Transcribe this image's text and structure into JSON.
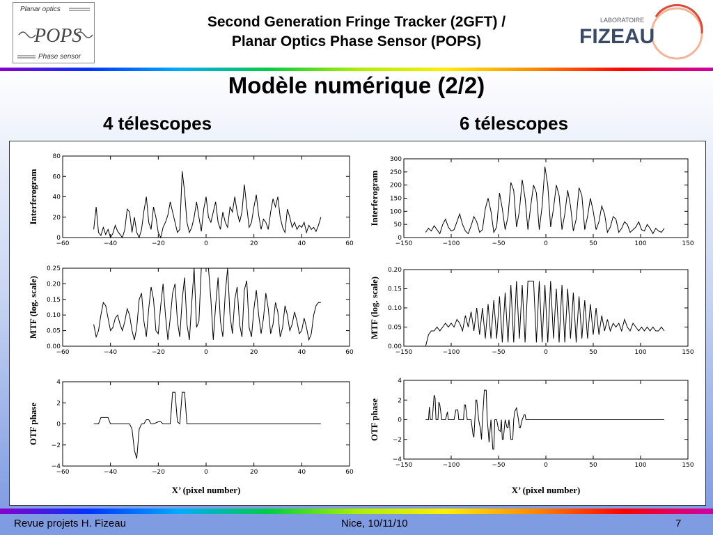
{
  "header": {
    "title_line1": "Second Generation Fringe Tracker (2GFT) /",
    "title_line2": "Planar Optics Phase Sensor (POPS)",
    "logo_left": {
      "top": "Planar optics",
      "mid": "POPS",
      "bottom": "Phase sensor"
    },
    "logo_right": {
      "small": "LABORATOIRE",
      "big": "FIZEAU"
    }
  },
  "slide_title": "Modèle numérique (2/2)",
  "columns": {
    "left": "4 télescopes",
    "right": "6 télescopes"
  },
  "footer": {
    "left": "Revue projets H. Fizeau",
    "center": "Nice, 10/11/10",
    "right": "7"
  },
  "colors": {
    "line": "#000000",
    "panel": "#ffffff"
  },
  "chart_data": [
    {
      "type": "line",
      "name": "interf-4",
      "ylabel": "Interferogram",
      "xlim": [
        -60,
        60
      ],
      "ylim": [
        0,
        80
      ],
      "xticks": [
        -60,
        -40,
        -20,
        0,
        20,
        40,
        60
      ],
      "yticks": [
        0,
        20,
        40,
        60,
        80
      ],
      "x": [
        -47,
        -46,
        -45,
        -44,
        -43,
        -42,
        -41,
        -40,
        -39,
        -38,
        -37,
        -36,
        -35,
        -34,
        -33,
        -32,
        -31,
        -30,
        -29,
        -28,
        -27,
        -26,
        -25,
        -24,
        -23,
        -22,
        -21,
        -20,
        -19,
        -18,
        -17,
        -16,
        -15,
        -14,
        -13,
        -12,
        -11,
        -10,
        -9,
        -8,
        -7,
        -6,
        -5,
        -4,
        -3,
        -2,
        -1,
        0,
        1,
        2,
        3,
        4,
        5,
        6,
        7,
        8,
        9,
        10,
        11,
        12,
        13,
        14,
        15,
        16,
        17,
        18,
        19,
        20,
        21,
        22,
        23,
        24,
        25,
        26,
        27,
        28,
        29,
        30,
        31,
        32,
        33,
        34,
        35,
        36,
        37,
        38,
        39,
        40,
        41,
        42,
        43,
        44,
        45,
        46,
        47,
        48
      ],
      "y": [
        8,
        30,
        5,
        2,
        10,
        3,
        8,
        0,
        4,
        12,
        6,
        3,
        0,
        8,
        28,
        25,
        5,
        20,
        5,
        0,
        8,
        26,
        40,
        15,
        8,
        30,
        20,
        5,
        0,
        10,
        15,
        22,
        35,
        25,
        15,
        5,
        8,
        65,
        45,
        15,
        5,
        10,
        20,
        35,
        20,
        6,
        28,
        40,
        20,
        15,
        25,
        35,
        15,
        8,
        25,
        15,
        10,
        30,
        25,
        40,
        25,
        15,
        25,
        52,
        30,
        10,
        15,
        30,
        42,
        22,
        8,
        18,
        15,
        8,
        25,
        38,
        30,
        40,
        20,
        10,
        5,
        28,
        20,
        10,
        15,
        8,
        12,
        10,
        15,
        5,
        12,
        8,
        10,
        6,
        12,
        20
      ]
    },
    {
      "type": "line",
      "name": "mtf-4",
      "ylabel": "MTF (log. scale)",
      "xlim": [
        -60,
        60
      ],
      "ylim": [
        0,
        0.25
      ],
      "xticks": [
        -60,
        -40,
        -20,
        0,
        20,
        40,
        60
      ],
      "yticks": [
        0.0,
        0.05,
        0.1,
        0.15,
        0.2,
        0.25
      ],
      "x": [
        -47,
        -46,
        -45,
        -44,
        -43,
        -42,
        -41,
        -40,
        -39,
        -38,
        -37,
        -36,
        -35,
        -34,
        -33,
        -32,
        -31,
        -30,
        -29,
        -28,
        -27,
        -26,
        -25,
        -24,
        -23,
        -22,
        -21,
        -20,
        -19,
        -18,
        -17,
        -16,
        -15,
        -14,
        -13,
        -12,
        -11,
        -10,
        -9,
        -8,
        -7,
        -6,
        -5,
        -4,
        -3,
        -2,
        -1,
        0,
        1,
        2,
        3,
        4,
        5,
        6,
        7,
        8,
        9,
        10,
        11,
        12,
        13,
        14,
        15,
        16,
        17,
        18,
        19,
        20,
        21,
        22,
        23,
        24,
        25,
        26,
        27,
        28,
        29,
        30,
        31,
        32,
        33,
        34,
        35,
        36,
        37,
        38,
        39,
        40,
        41,
        42,
        43,
        44,
        45,
        46,
        47,
        48
      ],
      "y": [
        0.07,
        0.03,
        0.05,
        0.1,
        0.14,
        0.13,
        0.09,
        0.05,
        0.06,
        0.09,
        0.1,
        0.07,
        0.05,
        0.08,
        0.12,
        0.1,
        0.05,
        0.02,
        0.06,
        0.15,
        0.17,
        0.08,
        0.03,
        0.12,
        0.19,
        0.15,
        0.05,
        0.04,
        0.13,
        0.2,
        0.1,
        0.02,
        0.09,
        0.17,
        0.2,
        0.08,
        0.03,
        0.15,
        0.22,
        0.07,
        0.02,
        0.14,
        0.25,
        0.06,
        0.08,
        0.25,
        0.25,
        0.25,
        0.25,
        0.15,
        0.02,
        0.13,
        0.22,
        0.08,
        0.03,
        0.17,
        0.25,
        0.1,
        0.04,
        0.15,
        0.19,
        0.07,
        0.03,
        0.18,
        0.21,
        0.06,
        0.03,
        0.12,
        0.18,
        0.1,
        0.04,
        0.09,
        0.17,
        0.12,
        0.04,
        0.07,
        0.14,
        0.11,
        0.03,
        0.06,
        0.13,
        0.1,
        0.05,
        0.07,
        0.11,
        0.08,
        0.04,
        0.05,
        0.09,
        0.06,
        0.02,
        0.04,
        0.1,
        0.13,
        0.14,
        0.14
      ]
    },
    {
      "type": "line",
      "name": "phase-4",
      "ylabel": "OTF phase",
      "xlabel": "X’ (pixel number)",
      "xlim": [
        -60,
        60
      ],
      "ylim": [
        -4,
        4
      ],
      "xticks": [
        -60,
        -40,
        -20,
        0,
        20,
        40,
        60
      ],
      "yticks": [
        -4,
        -2,
        0,
        2,
        4
      ],
      "x": [
        -47,
        -45,
        -44,
        -43,
        -42,
        -41,
        -40,
        -36,
        -32,
        -31,
        -30,
        -29,
        -28,
        -27,
        -26,
        -25,
        -24,
        -23,
        -22,
        -20,
        -19,
        -18,
        -17,
        -16,
        -15,
        -14,
        -13,
        -12,
        -11,
        -10,
        -9,
        -8,
        -6,
        -3,
        0,
        10,
        20,
        30,
        40,
        48
      ],
      "y": [
        0,
        0,
        0.6,
        0.6,
        0.6,
        0.6,
        0,
        0,
        0,
        -0.5,
        -2.5,
        -3.3,
        -0.5,
        0,
        0,
        0.4,
        0.4,
        0,
        0,
        0.2,
        0.2,
        0,
        0,
        0,
        0,
        3.0,
        3.0,
        0.2,
        0,
        3.0,
        3.0,
        0,
        0,
        0,
        0,
        0,
        0,
        0,
        0,
        0
      ]
    },
    {
      "type": "line",
      "name": "interf-6",
      "ylabel": "Interferogram",
      "xlim": [
        -150,
        150
      ],
      "ylim": [
        0,
        300
      ],
      "xticks": [
        -150,
        -100,
        -50,
        0,
        50,
        100,
        150
      ],
      "yticks": [
        0,
        50,
        100,
        150,
        200,
        250,
        300
      ],
      "x": [
        -127,
        -124,
        -121,
        -118,
        -115,
        -112,
        -109,
        -106,
        -103,
        -100,
        -97,
        -94,
        -91,
        -88,
        -85,
        -82,
        -79,
        -76,
        -73,
        -70,
        -67,
        -64,
        -61,
        -58,
        -55,
        -52,
        -49,
        -46,
        -43,
        -40,
        -37,
        -34,
        -31,
        -28,
        -25,
        -22,
        -19,
        -16,
        -13,
        -10,
        -7,
        -4,
        -1,
        2,
        5,
        8,
        11,
        14,
        17,
        20,
        23,
        26,
        29,
        32,
        35,
        38,
        41,
        44,
        47,
        50,
        53,
        56,
        59,
        62,
        65,
        68,
        71,
        74,
        77,
        80,
        83,
        86,
        89,
        92,
        95,
        98,
        101,
        104,
        107,
        110,
        113,
        116,
        119,
        122,
        125
      ],
      "y": [
        20,
        35,
        25,
        45,
        30,
        15,
        50,
        70,
        40,
        25,
        30,
        60,
        90,
        50,
        25,
        15,
        45,
        80,
        60,
        20,
        30,
        110,
        150,
        100,
        20,
        40,
        170,
        110,
        30,
        80,
        210,
        180,
        40,
        100,
        220,
        150,
        30,
        120,
        200,
        170,
        30,
        120,
        270,
        200,
        40,
        110,
        200,
        160,
        30,
        90,
        180,
        120,
        25,
        70,
        190,
        160,
        30,
        80,
        150,
        100,
        30,
        60,
        120,
        90,
        20,
        40,
        80,
        70,
        20,
        35,
        60,
        50,
        20,
        30,
        40,
        60,
        30,
        25,
        50,
        35,
        15,
        35,
        25,
        20,
        35
      ]
    },
    {
      "type": "line",
      "name": "mtf-6",
      "ylabel": "MTF (log. scale)",
      "xlim": [
        -150,
        150
      ],
      "ylim": [
        0,
        0.2
      ],
      "xticks": [
        -150,
        -100,
        -50,
        0,
        50,
        100,
        150
      ],
      "yticks": [
        0.0,
        0.05,
        0.1,
        0.15,
        0.2
      ],
      "x": [
        -127,
        -124,
        -121,
        -118,
        -115,
        -112,
        -109,
        -106,
        -103,
        -100,
        -97,
        -94,
        -91,
        -88,
        -85,
        -82,
        -79,
        -76,
        -73,
        -70,
        -67,
        -64,
        -61,
        -58,
        -55,
        -52,
        -49,
        -46,
        -43,
        -40,
        -37,
        -34,
        -31,
        -28,
        -25,
        -22,
        -19,
        -16,
        -13,
        -10,
        -7,
        -4,
        -1,
        2,
        5,
        8,
        11,
        14,
        17,
        20,
        23,
        26,
        29,
        32,
        35,
        38,
        41,
        44,
        47,
        50,
        53,
        56,
        59,
        62,
        65,
        68,
        71,
        74,
        77,
        80,
        83,
        86,
        89,
        92,
        95,
        98,
        101,
        104,
        107,
        110,
        113,
        116,
        119,
        122,
        125
      ],
      "y": [
        0.0,
        0.03,
        0.04,
        0.04,
        0.05,
        0.04,
        0.05,
        0.06,
        0.05,
        0.06,
        0.05,
        0.07,
        0.06,
        0.04,
        0.08,
        0.05,
        0.09,
        0.04,
        0.1,
        0.03,
        0.1,
        0.02,
        0.11,
        0.02,
        0.12,
        0.02,
        0.13,
        0.01,
        0.14,
        0.01,
        0.16,
        0.01,
        0.17,
        0.02,
        0.16,
        0.01,
        0.17,
        0.17,
        0.17,
        0.01,
        0.17,
        0.01,
        0.16,
        0.01,
        0.17,
        0.02,
        0.15,
        0.01,
        0.16,
        0.01,
        0.15,
        0.02,
        0.14,
        0.01,
        0.13,
        0.02,
        0.12,
        0.02,
        0.11,
        0.03,
        0.1,
        0.03,
        0.08,
        0.04,
        0.07,
        0.04,
        0.06,
        0.05,
        0.06,
        0.04,
        0.07,
        0.05,
        0.04,
        0.06,
        0.05,
        0.04,
        0.05,
        0.04,
        0.05,
        0.04,
        0.05,
        0.04,
        0.04,
        0.05,
        0.04
      ]
    },
    {
      "type": "line",
      "name": "phase-6",
      "ylabel": "OTF phase",
      "xlabel": "X’ (pixel number)",
      "xlim": [
        -150,
        150
      ],
      "ylim": [
        -4,
        4
      ],
      "xticks": [
        -150,
        -100,
        -50,
        0,
        50,
        100,
        150
      ],
      "yticks": [
        -4,
        -2,
        0,
        2,
        4
      ],
      "x": [
        -127,
        -124,
        -123,
        -122,
        -120,
        -118,
        -117,
        -116,
        -115,
        -114,
        -113,
        -112,
        -110,
        -109,
        -108,
        -106,
        -104,
        -103,
        -102,
        -101,
        -99,
        -97,
        -95,
        -93,
        -92,
        -91,
        -89,
        -87,
        -86,
        -85,
        -83,
        -81,
        -80,
        -79,
        -77,
        -76,
        -75,
        -74,
        -73,
        -71,
        -69,
        -68,
        -67,
        -65,
        -63,
        -62,
        -61,
        -60,
        -58,
        -56,
        -55,
        -54,
        -52,
        -50,
        -48,
        -47,
        -46,
        -45,
        -43,
        -41,
        -40,
        -39,
        -37,
        -35,
        -34,
        -33,
        -31,
        -29,
        -28,
        -27,
        -25,
        -23,
        -22,
        -21,
        -19,
        0,
        40,
        80,
        125
      ],
      "y": [
        0,
        0,
        1.3,
        0,
        0,
        2.5,
        2.2,
        0,
        0,
        0,
        1.8,
        1.5,
        0,
        0,
        0,
        0,
        0.8,
        0,
        0,
        0,
        0,
        0,
        1.0,
        1.0,
        0,
        0,
        0,
        0,
        1.5,
        1.5,
        0,
        0,
        0,
        0,
        -1.5,
        -1.8,
        0,
        2.0,
        2.0,
        0,
        -1.0,
        -2.0,
        0,
        3.0,
        3.0,
        0,
        -1.0,
        -2.3,
        0,
        -3.0,
        -3.0,
        0,
        0,
        -1.0,
        -1.2,
        0,
        -2.0,
        -2.0,
        0,
        -0.8,
        -0.8,
        0,
        -2.0,
        -2.0,
        0,
        0.8,
        1.2,
        0,
        -0.8,
        -0.8,
        0,
        0.5,
        0.5,
        0,
        0,
        0,
        0,
        0,
        0
      ]
    }
  ]
}
